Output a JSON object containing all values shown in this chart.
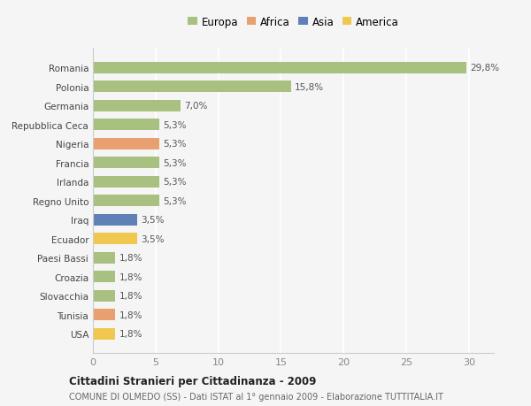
{
  "categories": [
    "Romania",
    "Polonia",
    "Germania",
    "Repubblica Ceca",
    "Nigeria",
    "Francia",
    "Irlanda",
    "Regno Unito",
    "Iraq",
    "Ecuador",
    "Paesi Bassi",
    "Croazia",
    "Slovacchia",
    "Tunisia",
    "USA"
  ],
  "values": [
    29.8,
    15.8,
    7.0,
    5.3,
    5.3,
    5.3,
    5.3,
    5.3,
    3.5,
    3.5,
    1.8,
    1.8,
    1.8,
    1.8,
    1.8
  ],
  "labels": [
    "29,8%",
    "15,8%",
    "7,0%",
    "5,3%",
    "5,3%",
    "5,3%",
    "5,3%",
    "5,3%",
    "3,5%",
    "3,5%",
    "1,8%",
    "1,8%",
    "1,8%",
    "1,8%",
    "1,8%"
  ],
  "continent": [
    "Europa",
    "Europa",
    "Europa",
    "Europa",
    "Africa",
    "Europa",
    "Europa",
    "Europa",
    "Asia",
    "America",
    "Europa",
    "Europa",
    "Europa",
    "Africa",
    "America"
  ],
  "colors": {
    "Europa": "#a8c080",
    "Africa": "#e8a070",
    "Asia": "#6080b8",
    "America": "#f0c850"
  },
  "xlim": [
    0,
    32
  ],
  "xticks": [
    0,
    5,
    10,
    15,
    20,
    25,
    30
  ],
  "title": "Cittadini Stranieri per Cittadinanza - 2009",
  "subtitle": "COMUNE DI OLMEDO (SS) - Dati ISTAT al 1° gennaio 2009 - Elaborazione TUTTITALIA.IT",
  "background_color": "#f5f5f5",
  "grid_color": "#ffffff",
  "bar_height": 0.6,
  "legend_order": [
    "Europa",
    "Africa",
    "Asia",
    "America"
  ],
  "legend_colors": [
    "#a8c080",
    "#e8a070",
    "#6080b8",
    "#f0c850"
  ]
}
